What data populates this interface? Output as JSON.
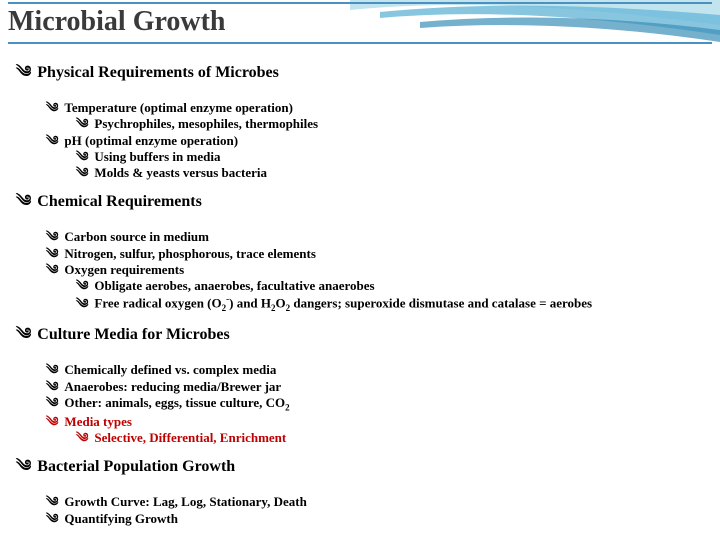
{
  "title": "Microbial Growth",
  "colors": {
    "rule": "#4a90c0",
    "wave_light": "#a8d8e8",
    "wave_mid": "#6ab8d8",
    "wave_dark": "#3a8fb8",
    "text": "#000000",
    "title_text": "#3a3a3a",
    "accent": "#c00000",
    "background": "#ffffff"
  },
  "bullet_glyph": "༄",
  "sections": [
    {
      "heading": "Physical Requirements of Microbes",
      "items": [
        {
          "text": "Temperature (optimal enzyme operation)",
          "sub": [
            {
              "text": "Psychrophiles, mesophiles, thermophiles"
            }
          ]
        },
        {
          "text": "pH (optimal enzyme operation)",
          "sub": [
            {
              "text": "Using buffers in media"
            },
            {
              "text": "Molds & yeasts versus bacteria"
            }
          ]
        }
      ]
    },
    {
      "heading": "Chemical Requirements",
      "items": [
        {
          "text": "Carbon source in medium"
        },
        {
          "text": "Nitrogen, sulfur, phosphorous, trace elements"
        },
        {
          "text": "Oxygen requirements",
          "sub": [
            {
              "text": "Obligate aerobes, anaerobes, facultative anaerobes"
            },
            {
              "html": "Free radical oxygen (O<span class=\"sub\">2</span><span class=\"sup\">-</span>) and H<span class=\"sub\">2</span>O<span class=\"sub\">2</span> dangers; superoxide dismutase and catalase = aerobes"
            }
          ]
        }
      ]
    },
    {
      "heading": "Culture Media for Microbes",
      "items": [
        {
          "text": "Chemically defined vs. complex media"
        },
        {
          "text": "Anaerobes: reducing media/Brewer jar"
        },
        {
          "html": "Other: animals, eggs, tissue culture, CO<span class=\"sub\">2</span>"
        },
        {
          "text": "Media types",
          "red": true,
          "sub": [
            {
              "text": "Selective, Differential, Enrichment",
              "red": true
            }
          ]
        }
      ]
    },
    {
      "heading": "Bacterial Population Growth",
      "items": [
        {
          "text": "Growth Curve: Lag, Log, Stationary, Death"
        },
        {
          "text": "Quantifying Growth"
        }
      ]
    }
  ]
}
